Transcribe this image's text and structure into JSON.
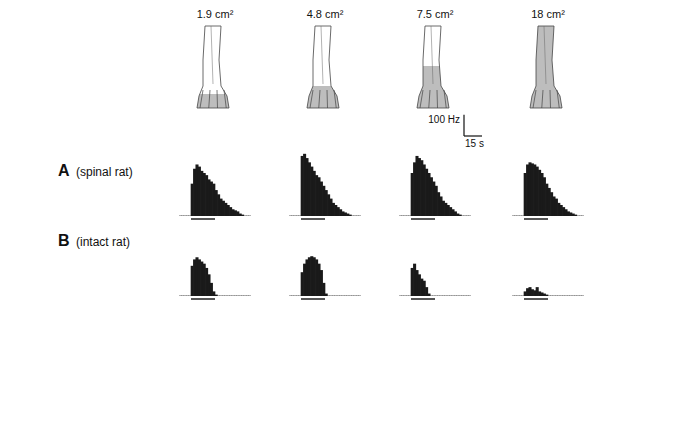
{
  "figure": {
    "columns": [
      "1.9 cm²",
      "4.8 cm²",
      "7.5 cm²",
      "18 cm²"
    ],
    "rows": [
      {
        "letter": "A",
        "label": "(spinal rat)"
      },
      {
        "letter": "B",
        "label": "(intact rat)"
      }
    ],
    "scale_bar": {
      "y": 100,
      "y_label": "100 Hz",
      "x": 15,
      "x_label": "15 s"
    }
  },
  "chart_data": [
    {
      "type": "histogram",
      "bins": [
        0,
        2,
        4,
        6,
        8,
        10,
        12,
        14,
        16,
        18,
        20,
        22,
        24,
        26,
        28,
        30,
        32,
        34,
        36,
        38,
        40,
        42,
        44,
        46,
        48,
        50,
        52,
        54,
        56,
        58,
        60
      ],
      "values": [
        0,
        0,
        0,
        0,
        0,
        150,
        220,
        240,
        230,
        210,
        200,
        190,
        170,
        160,
        150,
        120,
        100,
        80,
        70,
        60,
        50,
        40,
        30,
        25,
        20,
        10,
        5,
        0,
        0,
        0
      ],
      "stimulus": [
        10,
        30
      ],
      "xlim": [
        0,
        60
      ],
      "ylim": [
        0,
        300
      ],
      "tick_labels": false,
      "color": "#1a1a1a"
    },
    {
      "type": "histogram",
      "bins": [
        0,
        2,
        4,
        6,
        8,
        10,
        12,
        14,
        16,
        18,
        20,
        22,
        24,
        26,
        28,
        30,
        32,
        34,
        36,
        38,
        40,
        42,
        44,
        46,
        48,
        50,
        52,
        54,
        56,
        58,
        60
      ],
      "values": [
        0,
        0,
        0,
        0,
        0,
        280,
        290,
        270,
        250,
        230,
        210,
        190,
        180,
        160,
        140,
        120,
        100,
        80,
        60,
        50,
        40,
        30,
        20,
        15,
        10,
        5,
        0,
        0,
        0,
        0
      ],
      "stimulus": [
        10,
        30
      ],
      "xlim": [
        0,
        60
      ],
      "ylim": [
        0,
        300
      ],
      "tick_labels": false,
      "color": "#1a1a1a"
    },
    {
      "type": "histogram",
      "bins": [
        0,
        2,
        4,
        6,
        8,
        10,
        12,
        14,
        16,
        18,
        20,
        22,
        24,
        26,
        28,
        30,
        32,
        34,
        36,
        38,
        40,
        42,
        44,
        46,
        48,
        50,
        52,
        54,
        56,
        58,
        60
      ],
      "values": [
        0,
        0,
        0,
        0,
        0,
        200,
        250,
        280,
        270,
        260,
        240,
        220,
        200,
        180,
        160,
        140,
        110,
        90,
        70,
        60,
        50,
        40,
        30,
        20,
        10,
        5,
        0,
        0,
        0,
        0
      ],
      "stimulus": [
        10,
        30
      ],
      "xlim": [
        0,
        60
      ],
      "ylim": [
        0,
        300
      ],
      "tick_labels": false,
      "color": "#1a1a1a"
    },
    {
      "type": "histogram",
      "bins": [
        0,
        2,
        4,
        6,
        8,
        10,
        12,
        14,
        16,
        18,
        20,
        22,
        24,
        26,
        28,
        30,
        32,
        34,
        36,
        38,
        40,
        42,
        44,
        46,
        48,
        50,
        52,
        54,
        56,
        58,
        60
      ],
      "values": [
        0,
        0,
        0,
        0,
        0,
        200,
        240,
        250,
        245,
        240,
        230,
        215,
        200,
        180,
        150,
        130,
        110,
        90,
        80,
        60,
        50,
        40,
        30,
        20,
        15,
        10,
        5,
        0,
        0,
        0
      ],
      "stimulus": [
        10,
        30
      ],
      "xlim": [
        0,
        60
      ],
      "ylim": [
        0,
        300
      ],
      "tick_labels": false,
      "color": "#1a1a1a"
    },
    {
      "type": "histogram",
      "bins": [
        0,
        2,
        4,
        6,
        8,
        10,
        12,
        14,
        16,
        18,
        20,
        22,
        24,
        26,
        28,
        30,
        32,
        34,
        36,
        38,
        40,
        42,
        44,
        46,
        48,
        50,
        52,
        54,
        56,
        58,
        60
      ],
      "values": [
        0,
        0,
        0,
        0,
        0,
        140,
        170,
        180,
        170,
        160,
        150,
        130,
        100,
        60,
        20,
        5,
        0,
        0,
        0,
        0,
        0,
        0,
        0,
        0,
        0,
        0,
        0,
        0,
        0,
        0
      ],
      "stimulus": [
        10,
        30
      ],
      "xlim": [
        0,
        60
      ],
      "ylim": [
        0,
        300
      ],
      "tick_labels": false,
      "color": "#1a1a1a"
    },
    {
      "type": "histogram",
      "bins": [
        0,
        2,
        4,
        6,
        8,
        10,
        12,
        14,
        16,
        18,
        20,
        22,
        24,
        26,
        28,
        30,
        32,
        34,
        36,
        38,
        40,
        42,
        44,
        46,
        48,
        50,
        52,
        54,
        56,
        58,
        60
      ],
      "values": [
        0,
        0,
        0,
        0,
        0,
        110,
        150,
        170,
        180,
        185,
        180,
        170,
        150,
        120,
        60,
        10,
        0,
        0,
        0,
        0,
        0,
        0,
        0,
        0,
        0,
        0,
        0,
        0,
        0,
        0
      ],
      "stimulus": [
        10,
        30
      ],
      "xlim": [
        0,
        60
      ],
      "ylim": [
        0,
        300
      ],
      "tick_labels": false,
      "color": "#1a1a1a"
    },
    {
      "type": "histogram",
      "bins": [
        0,
        2,
        4,
        6,
        8,
        10,
        12,
        14,
        16,
        18,
        20,
        22,
        24,
        26,
        28,
        30,
        32,
        34,
        36,
        38,
        40,
        42,
        44,
        46,
        48,
        50,
        52,
        54,
        56,
        58,
        60
      ],
      "values": [
        0,
        0,
        0,
        0,
        0,
        130,
        150,
        120,
        100,
        80,
        70,
        40,
        10,
        0,
        0,
        0,
        0,
        0,
        0,
        0,
        0,
        0,
        0,
        0,
        0,
        0,
        0,
        0,
        0,
        0
      ],
      "stimulus": [
        10,
        30
      ],
      "xlim": [
        0,
        60
      ],
      "ylim": [
        0,
        300
      ],
      "tick_labels": false,
      "color": "#1a1a1a"
    },
    {
      "type": "histogram",
      "bins": [
        0,
        2,
        4,
        6,
        8,
        10,
        12,
        14,
        16,
        18,
        20,
        22,
        24,
        26,
        28,
        30,
        32,
        34,
        36,
        38,
        40,
        42,
        44,
        46,
        48,
        50,
        52,
        54,
        56,
        58,
        60
      ],
      "values": [
        0,
        0,
        0,
        0,
        0,
        20,
        35,
        40,
        30,
        25,
        40,
        20,
        15,
        10,
        5,
        0,
        0,
        0,
        0,
        0,
        0,
        0,
        0,
        0,
        0,
        0,
        0,
        0,
        0,
        0
      ],
      "stimulus": [
        10,
        30
      ],
      "xlim": [
        0,
        60
      ],
      "ylim": [
        0,
        300
      ],
      "tick_labels": false,
      "color": "#1a1a1a"
    }
  ]
}
